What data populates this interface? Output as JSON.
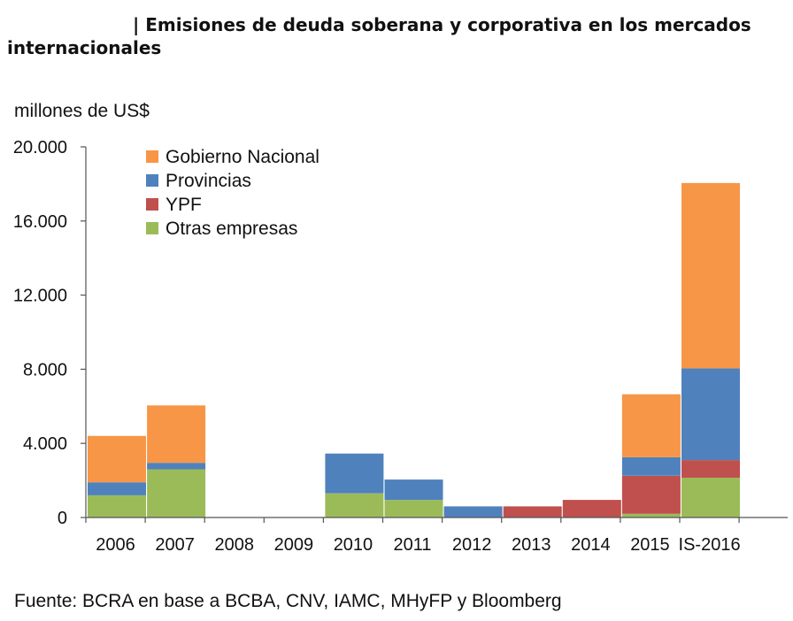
{
  "header": {
    "title_line1": "| Emisiones de deuda soberana y corporativa en los mercados",
    "title_line2": "internacionales"
  },
  "footer": {
    "source": "Fuente: BCRA en base a BCBA, CNV, IAMC, MHyFP y Bloomberg"
  },
  "chart_data": {
    "type": "bar",
    "stacked": true,
    "title": "| Emisiones de deuda soberana y corporativa en los mercados internacionales",
    "ylabel": "millones de US$",
    "xlabel": "",
    "ylim": [
      0,
      20000
    ],
    "yticks": [
      0,
      4000,
      8000,
      12000,
      16000,
      20000
    ],
    "ytick_labels": [
      "0",
      "4.000",
      "8.000",
      "12.000",
      "16.000",
      "20.000"
    ],
    "grid": false,
    "legend_position": "top-left",
    "categories": [
      "2006",
      "2007",
      "2008",
      "2009",
      "2010",
      "2011",
      "2012",
      "2013",
      "2014",
      "2015",
      "IS-2016"
    ],
    "series": [
      {
        "name": "Otras empresas",
        "color": "#9bbb59",
        "values": [
          1200,
          2600,
          0,
          0,
          1300,
          950,
          0,
          0,
          0,
          200,
          2150
        ]
      },
      {
        "name": "YPF",
        "color": "#c0504d",
        "values": [
          0,
          0,
          0,
          0,
          0,
          0,
          0,
          600,
          950,
          2050,
          950
        ]
      },
      {
        "name": "Provincias",
        "color": "#4f81bd",
        "values": [
          700,
          350,
          0,
          0,
          2150,
          1100,
          600,
          0,
          0,
          1000,
          4950
        ]
      },
      {
        "name": "Gobierno Nacional",
        "color": "#f79646",
        "values": [
          2500,
          3100,
          0,
          0,
          0,
          0,
          0,
          0,
          0,
          3400,
          10000
        ]
      }
    ],
    "legend_order": [
      "Gobierno Nacional",
      "Provincias",
      "YPF",
      "Otras empresas"
    ]
  }
}
